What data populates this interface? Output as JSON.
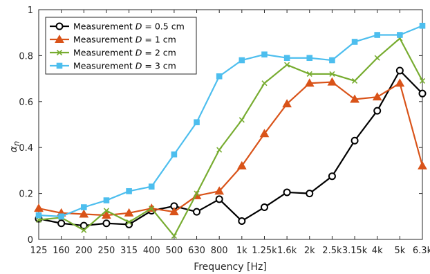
{
  "chart_data": {
    "type": "line",
    "title": "",
    "xlabel": "Frequency [Hz]",
    "ylabel": "α_n",
    "ylabel_main": "α",
    "ylabel_sub": "n",
    "categories": [
      "125",
      "160",
      "200",
      "250",
      "315",
      "400",
      "500",
      "630",
      "800",
      "1k",
      "1.25k",
      "1.6k",
      "2k",
      "2.5k",
      "3.15k",
      "4k",
      "5k",
      "6.3k"
    ],
    "ylim": [
      0,
      1
    ],
    "yticks": [
      "0",
      "0.2",
      "0.4",
      "0.6",
      "0.8",
      "1"
    ],
    "ytick_values": [
      0,
      0.2,
      0.4,
      0.6,
      0.8,
      1
    ],
    "grid": false,
    "legend_position": "top-left",
    "series": [
      {
        "name": "Measurement D = 0.5 cm",
        "legend_prefix": "Measurement ",
        "legend_var": "D",
        "legend_suffix": " = 0.5 cm",
        "color": "#000000",
        "marker": "circle",
        "values": [
          0.09,
          0.07,
          0.06,
          0.07,
          0.065,
          0.125,
          0.145,
          0.12,
          0.175,
          0.08,
          0.14,
          0.205,
          0.2,
          0.275,
          0.43,
          0.56,
          0.735,
          0.635
        ]
      },
      {
        "name": "Measurement D = 1 cm",
        "legend_prefix": "Measurement ",
        "legend_var": "D",
        "legend_suffix": " = 1 cm",
        "color": "#D95319",
        "marker": "triangle",
        "values": [
          0.135,
          0.115,
          0.11,
          0.105,
          0.115,
          0.135,
          0.12,
          0.19,
          0.21,
          0.32,
          0.46,
          0.59,
          0.68,
          0.685,
          0.61,
          0.62,
          0.68,
          0.32
        ]
      },
      {
        "name": "Measurement D = 2 cm",
        "legend_prefix": "Measurement ",
        "legend_var": "D",
        "legend_suffix": " = 2 cm",
        "color": "#77AC30",
        "marker": "x",
        "values": [
          0.085,
          0.095,
          0.04,
          0.125,
          0.075,
          0.135,
          0.015,
          0.2,
          0.39,
          0.52,
          0.68,
          0.76,
          0.72,
          0.72,
          0.69,
          0.79,
          0.875,
          0.69
        ]
      },
      {
        "name": "Measurement D = 3 cm",
        "legend_prefix": "Measurement ",
        "legend_var": "D",
        "legend_suffix": " = 3 cm",
        "color": "#4DBEEE",
        "marker": "square",
        "values": [
          0.105,
          0.1,
          0.14,
          0.17,
          0.21,
          0.23,
          0.37,
          0.51,
          0.71,
          0.78,
          0.805,
          0.79,
          0.79,
          0.78,
          0.86,
          0.89,
          0.89,
          0.93
        ]
      }
    ]
  }
}
